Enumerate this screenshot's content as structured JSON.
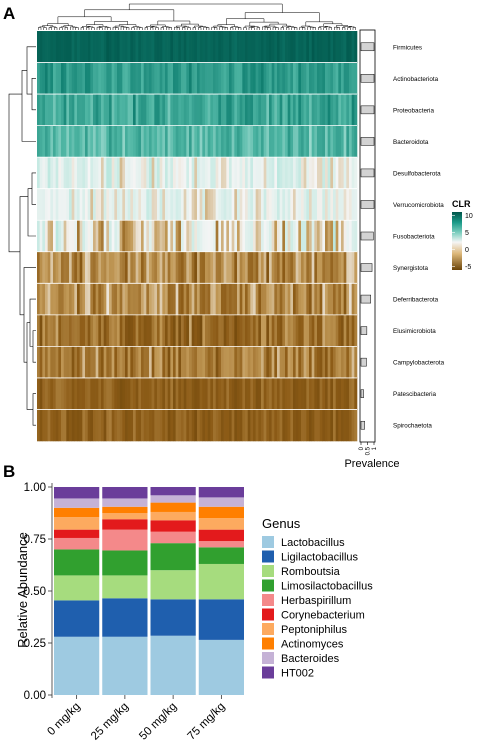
{
  "panels": {
    "a": {
      "letter": "A"
    },
    "b": {
      "letter": "B"
    }
  },
  "chart_data": [
    {
      "type": "heatmap",
      "panel": "A",
      "rows": [
        "Firmicutes",
        "Actinobacteriota",
        "Proteobacteria",
        "Bacteroidota",
        "Desulfobacterota",
        "Verrucomicrobiota",
        "Fusobacteriota",
        "Synergistota",
        "Deferribacterota",
        "Elusimicrobiota",
        "Campylobacterota",
        "Patescibacteria",
        "Spirochaetota"
      ],
      "row_mean_clr": [
        10,
        6.5,
        6,
        5,
        0.5,
        0.5,
        -0.5,
        -2.5,
        -2.5,
        -3.5,
        -3,
        -4,
        -4
      ],
      "row_spread_clr": [
        0.5,
        1.3,
        1.6,
        1.3,
        1.5,
        1.3,
        2.2,
        1.5,
        1.6,
        1.4,
        1.4,
        0.8,
        0.8
      ],
      "n_samples": 120,
      "color_scale": {
        "title": "CLR",
        "ticks": [
          10,
          5,
          0,
          -5
        ],
        "min": -6,
        "max": 11,
        "colors": {
          "low": "#6b4409",
          "mid": "#f7f7f7",
          "high": "#00554a"
        }
      },
      "prevalence": {
        "title": "Prevalence",
        "ticks": [
          "0",
          "0.5",
          "1"
        ],
        "values": [
          1.0,
          1.0,
          1.0,
          1.0,
          1.0,
          1.0,
          0.95,
          0.85,
          0.75,
          0.45,
          0.42,
          0.2,
          0.28
        ]
      },
      "row_dendrogram": true,
      "column_dendrogram": true
    },
    {
      "type": "bar",
      "panel": "B",
      "stacked": true,
      "categories": [
        "0 mg/kg",
        "25 mg/kg",
        "50 mg/kg",
        "75 mg/kg"
      ],
      "ylabel": "Relative Abundance",
      "yticks": [
        "0.00",
        "0.25",
        "0.50",
        "0.75",
        "1.00"
      ],
      "ylim": [
        0,
        1
      ],
      "legend": {
        "title": "Genus",
        "position": "right"
      },
      "series": [
        {
          "name": "Lactobacillus",
          "color": "#9ecae1",
          "values": [
            0.28,
            0.28,
            0.285,
            0.265
          ]
        },
        {
          "name": "Ligilactobacillus",
          "color": "#1f5fae",
          "values": [
            0.175,
            0.185,
            0.175,
            0.195
          ]
        },
        {
          "name": "Romboutsia",
          "color": "#a6dc7e",
          "values": [
            0.12,
            0.11,
            0.14,
            0.17
          ]
        },
        {
          "name": "Limosilactobacillus",
          "color": "#31a02f",
          "values": [
            0.125,
            0.12,
            0.13,
            0.08
          ]
        },
        {
          "name": "Herbaspirillum",
          "color": "#f4898a",
          "values": [
            0.055,
            0.1,
            0.055,
            0.03
          ]
        },
        {
          "name": "Corynebacterium",
          "color": "#e31a1c",
          "values": [
            0.04,
            0.05,
            0.055,
            0.055
          ]
        },
        {
          "name": "Peptoniphilus",
          "color": "#fdaa5f",
          "values": [
            0.06,
            0.03,
            0.04,
            0.055
          ]
        },
        {
          "name": "Actinomyces",
          "color": "#ff7f00",
          "values": [
            0.045,
            0.03,
            0.045,
            0.055
          ]
        },
        {
          "name": "Bacteroides",
          "color": "#c5b2d6",
          "values": [
            0.045,
            0.04,
            0.035,
            0.045
          ]
        },
        {
          "name": "HT002",
          "color": "#6a3d9a",
          "values": [
            0.055,
            0.055,
            0.04,
            0.05
          ]
        }
      ]
    }
  ]
}
